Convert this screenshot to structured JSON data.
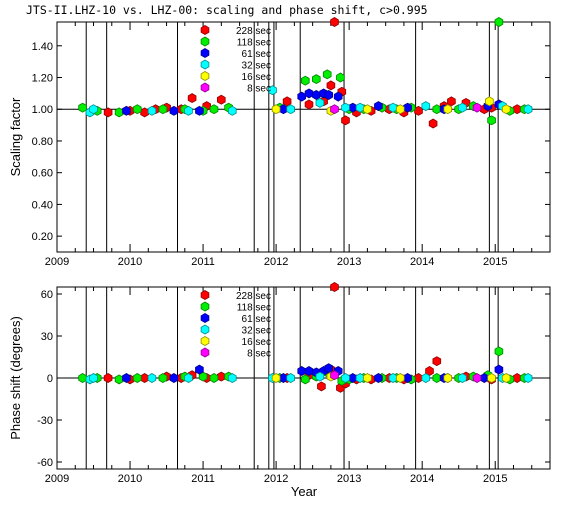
{
  "title": "JTS-II.LHZ-10 vs. LHZ-00: scaling and phase shift, c>0.995",
  "x_axis_label": "Year",
  "x_tick_labels": [
    "2009",
    "2010",
    "2011",
    "2012",
    "2013",
    "2014",
    "2015"
  ],
  "legend": [
    {
      "label": "228 sec",
      "color": "#ff0000"
    },
    {
      "label": "118 sec",
      "color": "#00ee00"
    },
    {
      "label": "61 sec",
      "color": "#0000ff"
    },
    {
      "label": "32 sec",
      "color": "#00ffff"
    },
    {
      "label": "16 sec",
      "color": "#ffff00"
    },
    {
      "label": "8 sec",
      "color": "#ff00ff"
    }
  ],
  "event_lines_year": [
    2009.4,
    2009.68,
    2010.65,
    2011.7,
    2011.9,
    2011.97,
    2012.33,
    2012.93,
    2013.91,
    2014.92,
    2015.04
  ],
  "chart_data": [
    {
      "type": "scatter",
      "ylabel": "Scaling factor",
      "xlim": [
        2009,
        2015.75
      ],
      "ylim": [
        0.1,
        1.55
      ],
      "y_tick_labels": [
        "0.20",
        "0.40",
        "0.60",
        "0.80",
        "1.00",
        "1.20",
        "1.40"
      ],
      "reference_line": 1.0,
      "series": [
        {
          "name": "228 sec",
          "color": "#ff0000",
          "points": [
            [
              2009.7,
              0.98
            ],
            [
              2010.0,
              0.99
            ],
            [
              2010.2,
              0.98
            ],
            [
              2010.35,
              1.0
            ],
            [
              2010.5,
              1.01
            ],
            [
              2010.7,
              1.0
            ],
            [
              2010.85,
              1.07
            ],
            [
              2011.05,
              1.02
            ],
            [
              2011.25,
              1.06
            ],
            [
              2012.15,
              1.05
            ],
            [
              2012.45,
              1.03
            ],
            [
              2012.65,
              1.05
            ],
            [
              2012.75,
              1.15
            ],
            [
              2012.8,
              1.55
            ],
            [
              2012.9,
              1.11
            ],
            [
              2012.95,
              0.93
            ],
            [
              2013.1,
              0.98
            ],
            [
              2013.3,
              0.99
            ],
            [
              2013.55,
              1.0
            ],
            [
              2013.75,
              0.98
            ],
            [
              2013.95,
              0.99
            ],
            [
              2014.15,
              0.91
            ],
            [
              2014.3,
              1.02
            ],
            [
              2014.4,
              1.05
            ],
            [
              2014.6,
              1.04
            ],
            [
              2014.85,
              1.0
            ],
            [
              2014.95,
              1.01
            ],
            [
              2015.05,
              1.03
            ],
            [
              2015.3,
              1.0
            ]
          ]
        },
        {
          "name": "118 sec",
          "color": "#00ee00",
          "points": [
            [
              2009.35,
              1.01
            ],
            [
              2009.55,
              0.99
            ],
            [
              2009.85,
              0.98
            ],
            [
              2010.1,
              1.0
            ],
            [
              2010.45,
              1.0
            ],
            [
              2010.75,
              1.0
            ],
            [
              2011.0,
              0.99
            ],
            [
              2011.15,
              1.0
            ],
            [
              2011.35,
              1.01
            ],
            [
              2012.05,
              1.01
            ],
            [
              2012.4,
              1.18
            ],
            [
              2012.55,
              1.19
            ],
            [
              2012.7,
              1.22
            ],
            [
              2012.88,
              1.2
            ],
            [
              2013.0,
              1.0
            ],
            [
              2013.2,
              1.0
            ],
            [
              2013.45,
              1.01
            ],
            [
              2013.65,
              1.0
            ],
            [
              2013.85,
              1.01
            ],
            [
              2014.2,
              1.0
            ],
            [
              2014.5,
              1.0
            ],
            [
              2014.7,
              1.02
            ],
            [
              2014.95,
              0.93
            ],
            [
              2015.05,
              1.55
            ],
            [
              2015.2,
              0.99
            ],
            [
              2015.4,
              1.0
            ]
          ]
        },
        {
          "name": "61 sec",
          "color": "#0000ff",
          "points": [
            [
              2009.95,
              0.99
            ],
            [
              2010.6,
              0.99
            ],
            [
              2010.95,
              0.99
            ],
            [
              2012.1,
              1.0
            ],
            [
              2012.35,
              1.08
            ],
            [
              2012.45,
              1.1
            ],
            [
              2012.55,
              1.09
            ],
            [
              2012.65,
              1.1
            ],
            [
              2012.72,
              1.09
            ],
            [
              2012.85,
              1.08
            ],
            [
              2013.05,
              1.01
            ],
            [
              2013.4,
              1.02
            ],
            [
              2013.8,
              1.01
            ],
            [
              2014.3,
              1.0
            ],
            [
              2014.9,
              1.02
            ],
            [
              2015.05,
              1.03
            ]
          ]
        },
        {
          "name": "32 sec",
          "color": "#00ffff",
          "points": [
            [
              2009.45,
              0.98
            ],
            [
              2009.5,
              1.0
            ],
            [
              2010.3,
              0.99
            ],
            [
              2010.8,
              0.99
            ],
            [
              2011.4,
              0.99
            ],
            [
              2011.95,
              1.12
            ],
            [
              2012.2,
              1.0
            ],
            [
              2012.6,
              1.04
            ],
            [
              2012.95,
              1.01
            ],
            [
              2013.15,
              1.01
            ],
            [
              2013.6,
              1.01
            ],
            [
              2014.05,
              1.02
            ],
            [
              2014.55,
              1.01
            ],
            [
              2015.1,
              1.02
            ],
            [
              2015.45,
              1.0
            ]
          ]
        },
        {
          "name": "16 sec",
          "color": "#ffff00",
          "points": [
            [
              2012.0,
              1.0
            ],
            [
              2012.75,
              0.99
            ],
            [
              2013.25,
              1.0
            ],
            [
              2013.7,
              1.0
            ],
            [
              2014.35,
              1.0
            ],
            [
              2014.92,
              1.05
            ],
            [
              2015.15,
              1.0
            ]
          ]
        },
        {
          "name": "8 sec",
          "color": "#ff00ff",
          "points": [
            [
              2012.8,
              1.0
            ],
            [
              2014.75,
              1.01
            ]
          ]
        }
      ]
    },
    {
      "type": "scatter",
      "ylabel": "Phase shift (degrees)",
      "xlim": [
        2009,
        2015.75
      ],
      "ylim": [
        -65,
        65
      ],
      "y_tick_labels": [
        "-60",
        "-30",
        "0",
        "30",
        "60"
      ],
      "reference_line": 0,
      "series": [
        {
          "name": "228 sec",
          "color": "#ff0000",
          "points": [
            [
              2009.7,
              0
            ],
            [
              2010.0,
              -1
            ],
            [
              2010.2,
              0
            ],
            [
              2010.5,
              1
            ],
            [
              2010.7,
              0
            ],
            [
              2010.85,
              2
            ],
            [
              2011.05,
              0
            ],
            [
              2011.25,
              1
            ],
            [
              2012.15,
              0
            ],
            [
              2012.45,
              2
            ],
            [
              2012.62,
              -6
            ],
            [
              2012.75,
              6
            ],
            [
              2012.8,
              65
            ],
            [
              2012.88,
              -7
            ],
            [
              2012.95,
              -4
            ],
            [
              2013.1,
              -1
            ],
            [
              2013.3,
              -1
            ],
            [
              2013.55,
              0
            ],
            [
              2013.75,
              -1
            ],
            [
              2013.95,
              0
            ],
            [
              2014.1,
              5
            ],
            [
              2014.2,
              12
            ],
            [
              2014.35,
              0
            ],
            [
              2014.6,
              1
            ],
            [
              2014.95,
              -1
            ],
            [
              2015.3,
              0
            ]
          ]
        },
        {
          "name": "118 sec",
          "color": "#00ee00",
          "points": [
            [
              2009.35,
              0
            ],
            [
              2009.55,
              0
            ],
            [
              2009.85,
              -1
            ],
            [
              2010.1,
              0
            ],
            [
              2010.45,
              0
            ],
            [
              2010.75,
              1
            ],
            [
              2011.0,
              1
            ],
            [
              2011.15,
              0
            ],
            [
              2011.35,
              1
            ],
            [
              2012.05,
              0
            ],
            [
              2012.4,
              -1
            ],
            [
              2012.55,
              1
            ],
            [
              2012.7,
              4
            ],
            [
              2012.9,
              -2
            ],
            [
              2013.0,
              -1
            ],
            [
              2013.2,
              0
            ],
            [
              2013.45,
              0
            ],
            [
              2013.65,
              0
            ],
            [
              2013.85,
              -1
            ],
            [
              2014.2,
              0
            ],
            [
              2014.5,
              0
            ],
            [
              2014.7,
              1
            ],
            [
              2014.9,
              2
            ],
            [
              2015.05,
              19
            ],
            [
              2015.2,
              -1
            ],
            [
              2015.4,
              0
            ]
          ]
        },
        {
          "name": "61 sec",
          "color": "#0000ff",
          "points": [
            [
              2009.95,
              0
            ],
            [
              2010.6,
              0
            ],
            [
              2010.95,
              6
            ],
            [
              2012.1,
              0
            ],
            [
              2012.35,
              5
            ],
            [
              2012.45,
              5
            ],
            [
              2012.55,
              4
            ],
            [
              2012.65,
              5
            ],
            [
              2012.72,
              7
            ],
            [
              2012.85,
              5
            ],
            [
              2013.05,
              0
            ],
            [
              2013.4,
              0
            ],
            [
              2013.8,
              0
            ],
            [
              2014.3,
              0
            ],
            [
              2014.85,
              0
            ],
            [
              2015.05,
              6
            ]
          ]
        },
        {
          "name": "32 sec",
          "color": "#00ffff",
          "points": [
            [
              2009.45,
              -1
            ],
            [
              2009.5,
              0
            ],
            [
              2010.3,
              0
            ],
            [
              2010.8,
              0
            ],
            [
              2011.4,
              0
            ],
            [
              2011.95,
              0
            ],
            [
              2012.2,
              0
            ],
            [
              2012.6,
              1
            ],
            [
              2012.95,
              0
            ],
            [
              2013.15,
              0
            ],
            [
              2013.6,
              0
            ],
            [
              2014.05,
              0
            ],
            [
              2014.55,
              0
            ],
            [
              2015.1,
              0
            ],
            [
              2015.45,
              0
            ]
          ]
        },
        {
          "name": "16 sec",
          "color": "#ffff00",
          "points": [
            [
              2012.0,
              0
            ],
            [
              2012.75,
              1
            ],
            [
              2013.25,
              0
            ],
            [
              2013.7,
              0
            ],
            [
              2014.35,
              0
            ],
            [
              2014.95,
              0
            ],
            [
              2015.15,
              0
            ]
          ]
        },
        {
          "name": "8 sec",
          "color": "#ff00ff",
          "points": [
            [
              2012.8,
              2
            ],
            [
              2014.75,
              0
            ]
          ]
        }
      ]
    }
  ]
}
